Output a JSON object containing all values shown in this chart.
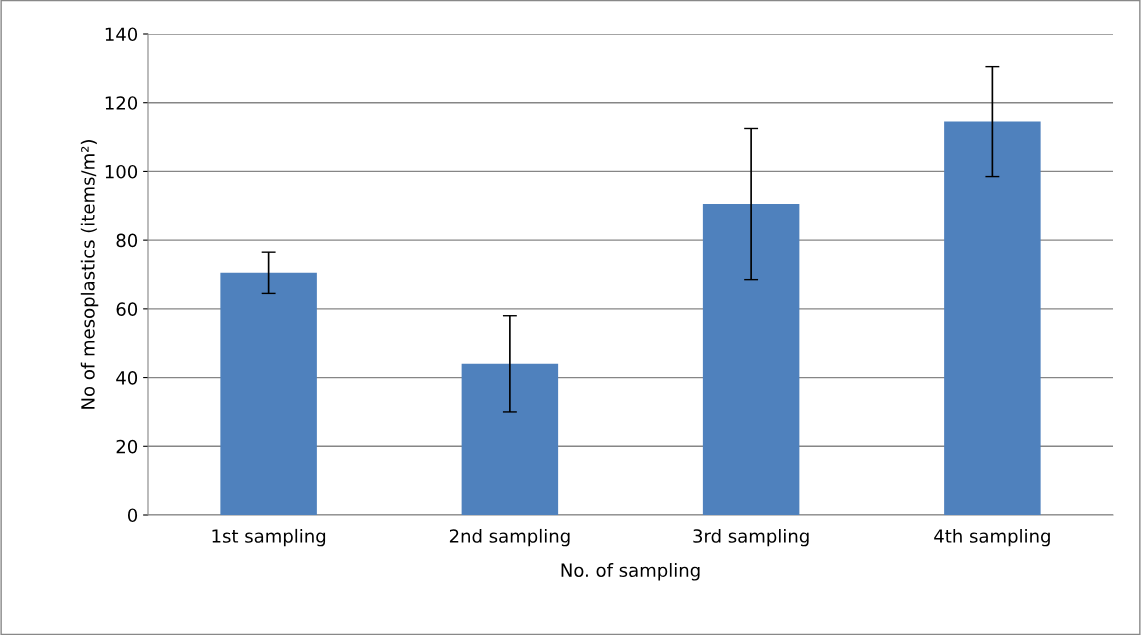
{
  "chart_data": {
    "type": "bar",
    "xlabel": "No. of sampling",
    "ylabel": "No of mesoplastics (items/m²)",
    "categories": [
      "1st sampling",
      "2nd sampling",
      "3rd sampling",
      "4th sampling"
    ],
    "values": [
      70.5,
      44,
      90.5,
      114.5
    ],
    "errors": [
      6,
      14,
      22,
      16
    ],
    "color": "#4f81bd",
    "ylim": [
      0,
      140
    ],
    "yticks": [
      0,
      20,
      40,
      60,
      80,
      100,
      120,
      140
    ],
    "grid": "y"
  }
}
